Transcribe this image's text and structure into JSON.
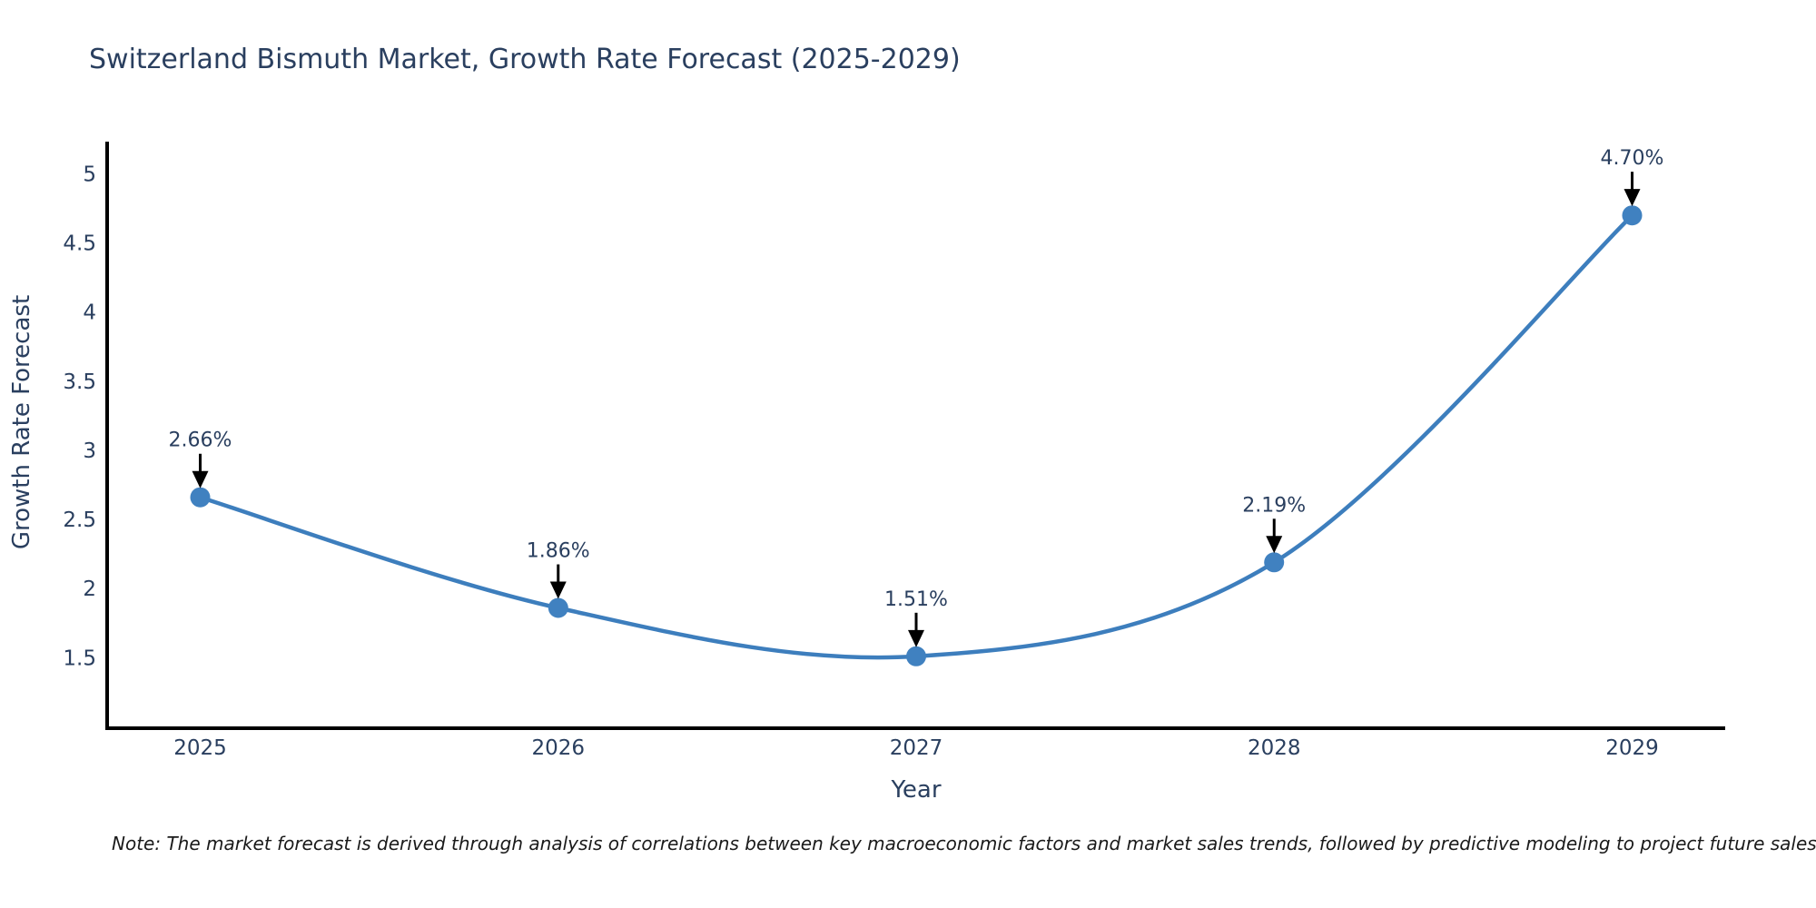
{
  "title": "Switzerland Bismuth Market, Growth Rate Forecast (2025-2029)",
  "note": "Note: The market forecast is derived through analysis of correlations between key macroeconomic factors and market sales trends, followed by predictive modeling to project future sales",
  "chart_data": {
    "type": "line",
    "title": "Switzerland Bismuth Market, Growth Rate Forecast (2025-2029)",
    "xlabel": "Year",
    "ylabel": "Growth Rate Forecast",
    "x": [
      2025,
      2026,
      2027,
      2028,
      2029
    ],
    "values": [
      2.66,
      1.86,
      1.51,
      2.19,
      4.7
    ],
    "point_labels": [
      "2.66%",
      "1.86%",
      "1.51%",
      "2.19%",
      "4.70%"
    ],
    "xtick_labels": [
      "2025",
      "2026",
      "2027",
      "2028",
      "2029"
    ],
    "ytick_values": [
      1.5,
      2,
      2.5,
      3,
      3.5,
      4,
      4.5,
      5
    ],
    "ytick_labels": [
      "1.5",
      "2",
      "2.5",
      "3",
      "3.5",
      "4",
      "4.5",
      "5"
    ],
    "xlim": [
      2024.74,
      2029.26
    ],
    "ylim": [
      0.99,
      5.22
    ],
    "grid": false,
    "legend": null,
    "line_shape": "spline",
    "colors": {
      "line": "#3d7ebd",
      "marker": "#4081c0",
      "axis": "#000000",
      "text": "#2a3f5f",
      "annotation_arrow": "#000000",
      "background": "#ffffff"
    }
  }
}
